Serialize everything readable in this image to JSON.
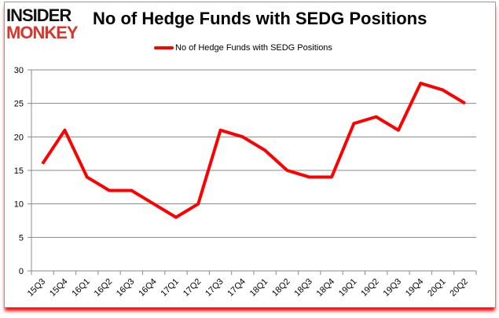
{
  "logo": {
    "line1": "INSIDER",
    "line2": "MONKEY"
  },
  "chart_data": {
    "type": "line",
    "title": "No of Hedge Funds with SEDG Positions",
    "categories": [
      "15Q3",
      "15Q4",
      "16Q1",
      "16Q2",
      "16Q3",
      "16Q4",
      "17Q1",
      "17Q2",
      "17Q3",
      "17Q4",
      "18Q1",
      "18Q2",
      "18Q3",
      "18Q4",
      "19Q1",
      "19Q2",
      "19Q3",
      "19Q4",
      "20Q1",
      "20Q2"
    ],
    "series": [
      {
        "name": "No of Hedge Funds with SEDG Positions",
        "color": "#ff0000",
        "values": [
          16,
          21,
          14,
          12,
          12,
          10,
          8,
          10,
          21,
          20,
          18,
          15,
          14,
          14,
          22,
          23,
          21,
          28,
          27,
          25
        ]
      }
    ],
    "ylim": [
      0,
      30
    ],
    "yticks": [
      0,
      5,
      10,
      15,
      20,
      25,
      30
    ],
    "grid": true,
    "legend": "top"
  }
}
